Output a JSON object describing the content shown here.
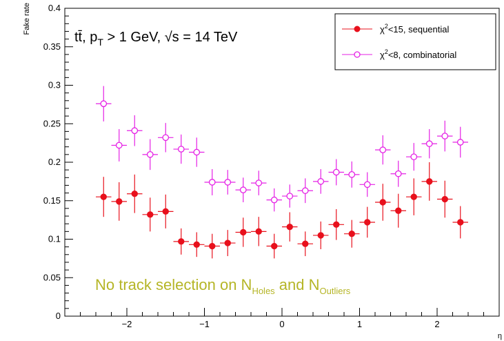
{
  "chart_data": {
    "type": "scatter",
    "xlabel": "η",
    "ylabel": "Fake rate",
    "xlim": [
      -2.8,
      2.8
    ],
    "ylim": [
      0,
      0.4
    ],
    "x_ticks": [
      -2,
      -1,
      0,
      1,
      2
    ],
    "x_tick_labels": [
      "−2",
      "−1",
      "0",
      "1",
      "2"
    ],
    "y_ticks": [
      0,
      0.05,
      0.1,
      0.15,
      0.2,
      0.25,
      0.3,
      0.35,
      0.4
    ],
    "y_tick_labels": [
      "0",
      "0.05",
      "0.1",
      "0.15",
      "0.2",
      "0.25",
      "0.3",
      "0.35",
      "0.4"
    ],
    "process_label": {
      "part1": "tt̄, p",
      "sub": "T",
      "part2": " > 1 GeV, √s = 14 TeV"
    },
    "annotation": {
      "part1": "No track selection on N",
      "sub1": "Holes",
      "part2": " and N",
      "sub2": "Outliers",
      "color": "#b5b526"
    },
    "legend_position": "top-right",
    "x_half_width": 0.1,
    "series": [
      {
        "name": "χ²<15, sequential",
        "name_parts": [
          "χ",
          "2",
          "<15, sequential"
        ],
        "color": "#e8101c",
        "marker": "filled-circle",
        "x": [
          -2.3,
          -2.1,
          -1.9,
          -1.7,
          -1.5,
          -1.3,
          -1.1,
          -0.9,
          -0.7,
          -0.5,
          -0.3,
          -0.1,
          0.1,
          0.3,
          0.5,
          0.7,
          0.9,
          1.1,
          1.3,
          1.5,
          1.7,
          1.9,
          2.1,
          2.3
        ],
        "y": [
          0.155,
          0.149,
          0.159,
          0.132,
          0.136,
          0.097,
          0.093,
          0.091,
          0.095,
          0.109,
          0.11,
          0.091,
          0.116,
          0.094,
          0.105,
          0.119,
          0.107,
          0.122,
          0.148,
          0.137,
          0.155,
          0.175,
          0.152,
          0.122
        ],
        "err": [
          0.026,
          0.025,
          0.025,
          0.022,
          0.022,
          0.017,
          0.016,
          0.016,
          0.017,
          0.019,
          0.019,
          0.016,
          0.019,
          0.016,
          0.018,
          0.02,
          0.018,
          0.02,
          0.024,
          0.022,
          0.024,
          0.025,
          0.024,
          0.021
        ]
      },
      {
        "name": "χ²<8, combinatorial",
        "name_parts": [
          "χ",
          "2",
          "<8, combinatorial"
        ],
        "color": "#e520e5",
        "marker": "open-circle",
        "x": [
          -2.3,
          -2.1,
          -1.9,
          -1.7,
          -1.5,
          -1.3,
          -1.1,
          -0.9,
          -0.7,
          -0.5,
          -0.3,
          -0.1,
          0.1,
          0.3,
          0.5,
          0.7,
          0.9,
          1.1,
          1.3,
          1.5,
          1.7,
          1.9,
          2.1,
          2.3
        ],
        "y": [
          0.276,
          0.222,
          0.241,
          0.21,
          0.232,
          0.217,
          0.213,
          0.174,
          0.174,
          0.164,
          0.173,
          0.151,
          0.156,
          0.163,
          0.175,
          0.187,
          0.184,
          0.171,
          0.216,
          0.185,
          0.207,
          0.224,
          0.234,
          0.226
        ],
        "err": [
          0.023,
          0.021,
          0.02,
          0.02,
          0.019,
          0.019,
          0.019,
          0.017,
          0.016,
          0.016,
          0.016,
          0.015,
          0.015,
          0.016,
          0.016,
          0.017,
          0.017,
          0.016,
          0.019,
          0.017,
          0.018,
          0.019,
          0.02,
          0.02
        ]
      }
    ]
  }
}
